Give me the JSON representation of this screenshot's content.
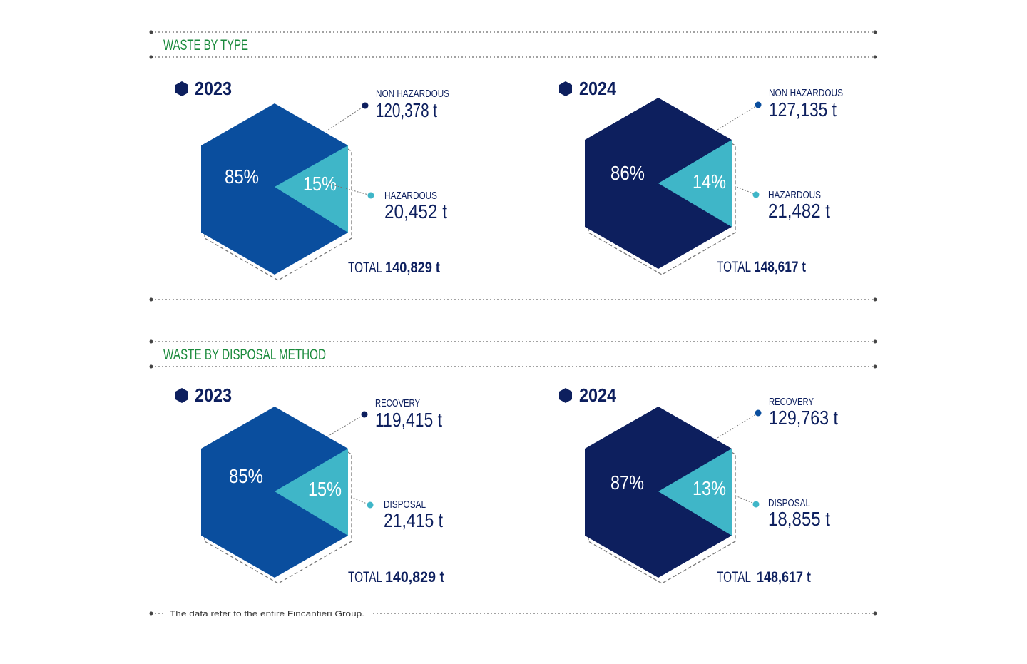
{
  "colors": {
    "accent_green": "#1a8a3c",
    "navy": "#0d1f5e",
    "blue": "#0a4e9e",
    "teal": "#3fb6c8",
    "rule": "#444444",
    "note": "#333333"
  },
  "sections": [
    {
      "title": "WASTE BY TYPE",
      "panels": [
        {
          "year": "2023",
          "main_color": "#0a4e9e",
          "main_label": "NON HAZARDOUS",
          "main_value": "120,378 t",
          "main_pct": "85%",
          "minor_label": "HAZARDOUS",
          "minor_value": "20,452 t",
          "minor_pct": "15%",
          "total_label": "TOTAL",
          "total_value": "140,829 t"
        },
        {
          "year": "2024",
          "main_color": "#0d1f5e",
          "main_label": "NON HAZARDOUS",
          "main_value": "127,135 t",
          "main_pct": "86%",
          "minor_label": "HAZARDOUS",
          "minor_value": "21,482 t",
          "minor_pct": "14%",
          "total_label": "TOTAL",
          "total_value": "148,617 t"
        }
      ]
    },
    {
      "title": "WASTE BY DISPOSAL METHOD",
      "panels": [
        {
          "year": "2023",
          "main_color": "#0a4e9e",
          "main_label": "RECOVERY",
          "main_value": "119,415 t",
          "main_pct": "85%",
          "minor_label": "DISPOSAL",
          "minor_value": "21,415 t",
          "minor_pct": "15%",
          "total_label": "TOTAL",
          "total_value": "140,829 t"
        },
        {
          "year": "2024",
          "main_color": "#0d1f5e",
          "main_label": "RECOVERY",
          "main_value": "129,763 t",
          "main_pct": "87%",
          "minor_label": "DISPOSAL",
          "minor_value": "18,855 t",
          "minor_pct": "13%",
          "total_label": "TOTAL",
          "total_value": "148,617 t"
        }
      ]
    }
  ],
  "footnote": "The data refer to the entire Fincantieri Group.",
  "chart_data": [
    {
      "type": "pie",
      "title": "WASTE BY TYPE",
      "categories": [
        "NON HAZARDOUS",
        "HAZARDOUS"
      ],
      "series": [
        {
          "name": "2023",
          "values": [
            120378,
            20452
          ],
          "percent": [
            85,
            15
          ],
          "total": 140829
        },
        {
          "name": "2024",
          "values": [
            127135,
            21482
          ],
          "percent": [
            86,
            14
          ],
          "total": 148617
        }
      ]
    },
    {
      "type": "pie",
      "title": "WASTE BY DISPOSAL METHOD",
      "categories": [
        "RECOVERY",
        "DISPOSAL"
      ],
      "series": [
        {
          "name": "2023",
          "values": [
            119415,
            21415
          ],
          "percent": [
            85,
            15
          ],
          "total": 140829
        },
        {
          "name": "2024",
          "values": [
            129763,
            18855
          ],
          "percent": [
            87,
            13
          ],
          "total": 148617
        }
      ]
    }
  ]
}
